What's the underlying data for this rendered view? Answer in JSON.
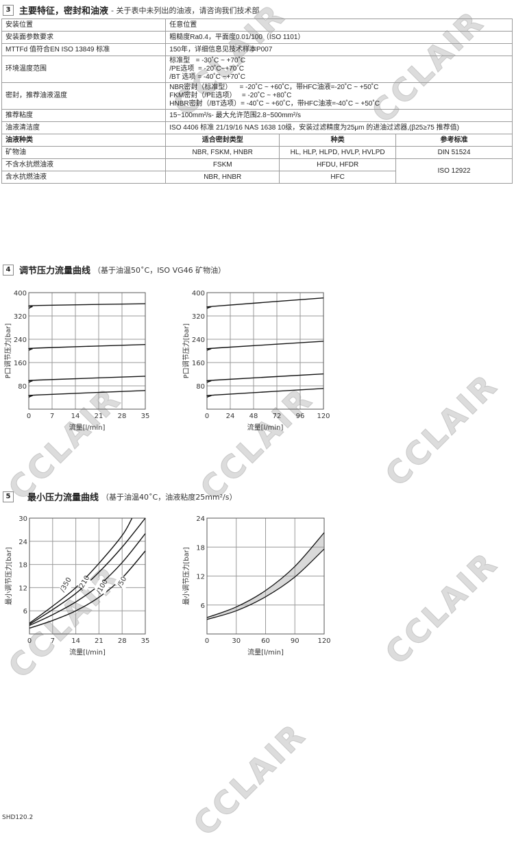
{
  "watermark": "CCLAIR",
  "section3": {
    "number": "3",
    "title": "主要特征，密封和油液",
    "subtitle": "- 关于表中未列出的油液，请咨询我们技术部",
    "rows": [
      {
        "label": "安装位置",
        "value": [
          "任意位置"
        ]
      },
      {
        "label": "安装面参数要求",
        "value": [
          "粗糙度Ra0.4，平面度0.01/100（ISO 1101）"
        ]
      },
      {
        "label": "MTTFd 值符合EN ISO 13849 标准",
        "value": [
          "150年，详细信息见技术样本P007"
        ]
      },
      {
        "label": "环境温度范围",
        "value": [
          "标准型   = -30˚C ~ +70˚C",
          "/PE选项  = -20˚C~+70˚C",
          "/BT 选项 = -40˚C ~+70˚C"
        ]
      },
      {
        "label": "密封，推荐油液温度",
        "value": [
          "NBR密封（标准型）    = -20˚C ~ +60˚C，带HFC油液=-20˚C ~ +50˚C",
          "FKM密封（/PE选项）   = -20˚C ~ +80˚C",
          "HNBR密封（/BT选项）= -40˚C ~ +60˚C，带HFC油液=-40˚C ~ +50˚C"
        ]
      },
      {
        "label": "推荐粘度",
        "value": [
          "15~100mm²/s- 最大允许范围2.8~500mm²/s"
        ]
      },
      {
        "label": "油液清洁度",
        "value": [
          "ISO 4406 标准 21/19/16 NAS 1638 10级，安装过滤精度为25μm 的进油过滤器,(β25≥75 推荐值)"
        ]
      }
    ],
    "fluid_headers": [
      "油液种类",
      "适合密封类型",
      "种类",
      "参考标准"
    ],
    "fluids": [
      {
        "type": "矿物油",
        "seals": "NBR, FSKM, HNBR",
        "classes": "HL, HLP, HLPD, HVLP, HVLPD",
        "standard": "DIN 51524"
      },
      {
        "type": "不含水抗燃油液",
        "seals": "FSKM",
        "classes": "HFDU, HFDR",
        "standard": "ISO 12922"
      },
      {
        "type": "含水抗燃油液",
        "seals": "NBR, HNBR",
        "classes": "HFC"
      }
    ]
  },
  "section4": {
    "number": "4",
    "title": "调节压力流量曲线",
    "subtitle": "（基于油温50˚C，ISO VG46 矿物油）"
  },
  "section5": {
    "number": "5",
    "title": "最小压力流量曲线",
    "subtitle": "（基于油温40˚C，油液粘度25mm²/s）"
  },
  "footer": "SHD120.2",
  "chart_data": [
    {
      "type": "line",
      "xlabel": "流量[l/min]",
      "ylabel": "P口调节压力[bar]",
      "xlim": [
        0,
        35
      ],
      "ylim": [
        0,
        400
      ],
      "xticks": [
        0,
        7,
        14,
        21,
        28,
        35
      ],
      "yticks": [
        80,
        160,
        240,
        320,
        400
      ],
      "grid": true,
      "series": [
        {
          "x": [
            0,
            1,
            3,
            35
          ],
          "y": [
            346,
            352,
            356,
            362
          ]
        },
        {
          "x": [
            0,
            1,
            3,
            35
          ],
          "y": [
            202,
            207,
            210,
            222
          ]
        },
        {
          "x": [
            0,
            1,
            3,
            35
          ],
          "y": [
            92,
            97,
            100,
            113
          ]
        },
        {
          "x": [
            0,
            1,
            3,
            35
          ],
          "y": [
            41,
            46,
            49,
            64
          ]
        }
      ]
    },
    {
      "type": "line",
      "xlabel": "流量[l/min]",
      "ylabel": "P口调节压力[bar]",
      "xlim": [
        0,
        120
      ],
      "ylim": [
        0,
        400
      ],
      "xticks": [
        0,
        24,
        48,
        72,
        96,
        120
      ],
      "yticks": [
        80,
        160,
        240,
        320,
        400
      ],
      "grid": true,
      "series": [
        {
          "x": [
            0,
            4,
            10,
            120
          ],
          "y": [
            346,
            351,
            354,
            382
          ]
        },
        {
          "x": [
            0,
            4,
            10,
            120
          ],
          "y": [
            202,
            207,
            210,
            233
          ]
        },
        {
          "x": [
            0,
            4,
            10,
            120
          ],
          "y": [
            92,
            97,
            100,
            121
          ]
        },
        {
          "x": [
            0,
            4,
            10,
            120
          ],
          "y": [
            41,
            46,
            49,
            71
          ]
        }
      ]
    },
    {
      "type": "line",
      "xlabel": "流量[l/min]",
      "ylabel": "最小调节压力[bar]",
      "xlim": [
        0,
        35
      ],
      "ylim": [
        0,
        30
      ],
      "xticks": [
        0,
        7,
        14,
        21,
        28,
        35
      ],
      "yticks": [
        6,
        12,
        18,
        24,
        30
      ],
      "grid": true,
      "series": [
        {
          "name": "/350",
          "x": [
            0,
            7,
            14,
            21,
            28,
            31
          ],
          "y": [
            2.8,
            7.2,
            12,
            18.3,
            25.5,
            30
          ]
        },
        {
          "name": "/210",
          "x": [
            0,
            7,
            14,
            21,
            28,
            35
          ],
          "y": [
            2.5,
            6.3,
            10.5,
            16,
            22.5,
            30
          ]
        },
        {
          "name": "/100",
          "x": [
            0,
            7,
            14,
            21,
            28,
            35
          ],
          "y": [
            2.2,
            5,
            8.3,
            12.6,
            18.5,
            26
          ]
        },
        {
          "name": "/50",
          "x": [
            0,
            7,
            14,
            21,
            28,
            35
          ],
          "y": [
            1.5,
            3.5,
            6,
            9.5,
            14.5,
            21.5
          ]
        }
      ]
    },
    {
      "type": "area",
      "xlabel": "流量[l/min]",
      "ylabel": "最小调节压力[bar]",
      "xlim": [
        0,
        120
      ],
      "ylim": [
        0,
        24
      ],
      "xticks": [
        0,
        30,
        60,
        90,
        120
      ],
      "yticks": [
        6,
        12,
        18,
        24
      ],
      "grid": true,
      "fill": "#d9d9d9",
      "band": {
        "x": [
          0,
          30,
          60,
          90,
          120
        ],
        "upper": [
          3.4,
          5.6,
          9,
          14,
          21
        ],
        "lower": [
          3,
          4.8,
          7.7,
          11.8,
          17.6
        ]
      }
    }
  ]
}
